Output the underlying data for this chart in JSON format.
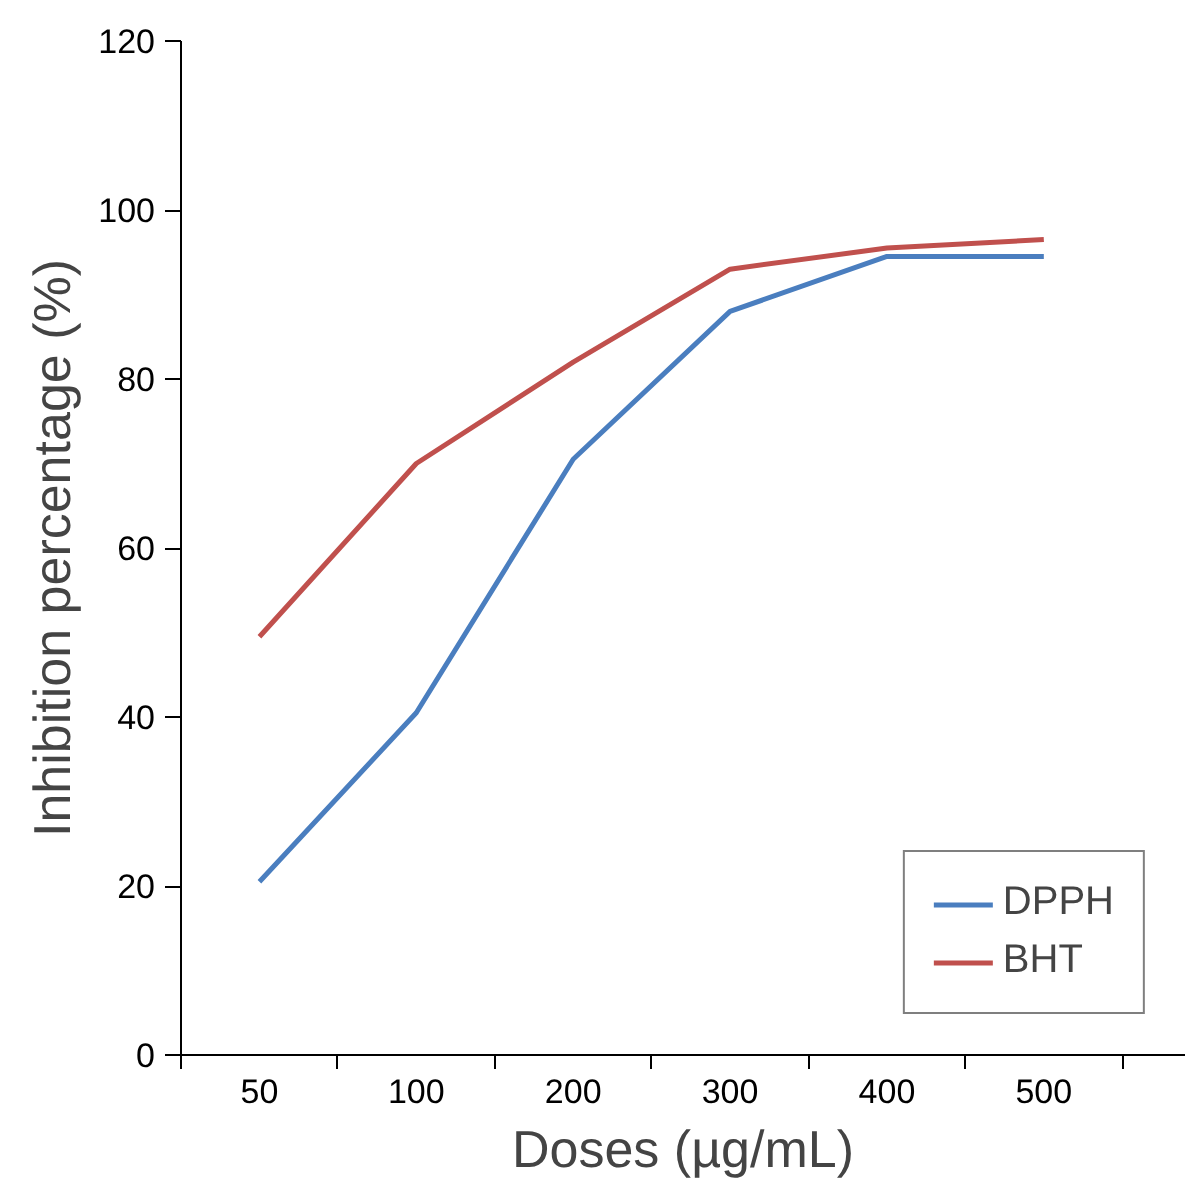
{
  "chart_data": {
    "type": "line",
    "xlabel": "Doses (µg/mL)",
    "ylabel": "Inhibition percentage (%)",
    "categories": [
      "50",
      "100",
      "200",
      "300",
      "400",
      "500"
    ],
    "series": [
      {
        "name": "DPPH",
        "color": "#4a7ebf",
        "values": [
          20.5,
          40.5,
          70.5,
          88,
          94.5,
          94.5
        ]
      },
      {
        "name": "BHT",
        "color": "#c0504d",
        "values": [
          49.5,
          70,
          82,
          93,
          95.5,
          96.5
        ]
      }
    ],
    "ylim": [
      0,
      120
    ],
    "yticks": [
      0,
      20,
      40,
      60,
      80,
      100,
      120
    ],
    "grid": false,
    "legend": "bottom right",
    "marker": "none",
    "line_style": "solid"
  }
}
